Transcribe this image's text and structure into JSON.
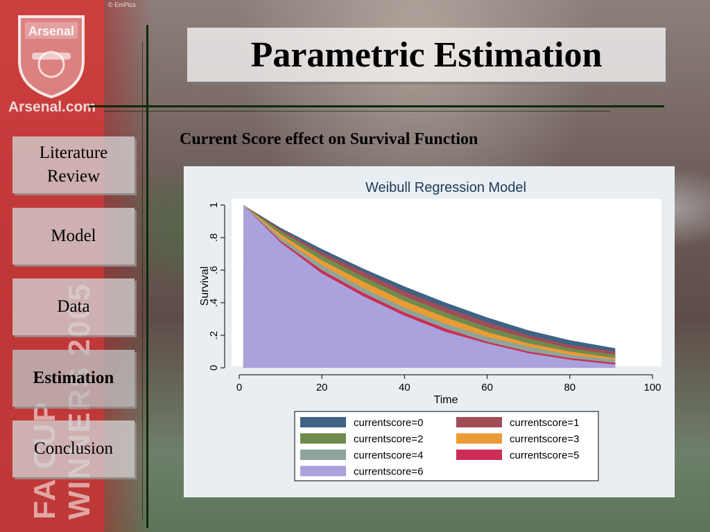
{
  "header": {
    "title": "Parametric Estimation",
    "subtitle": "Current Score effect on Survival Function",
    "photo_credit": "© EmPics"
  },
  "branding": {
    "crest_name": "Arsenal",
    "site": "Arsenal.com",
    "watermark": "FA CUP WINNERS 2005"
  },
  "nav": {
    "items": [
      {
        "label": "Literature Review",
        "active": false
      },
      {
        "label": "Model",
        "active": false
      },
      {
        "label": "Data",
        "active": false
      },
      {
        "label": "Estimation",
        "active": true
      },
      {
        "label": "Conclusion",
        "active": false
      }
    ]
  },
  "chart_data": {
    "type": "area",
    "title": "Weibull Regression Model",
    "xlabel": "Time",
    "ylabel": "Survival",
    "xlim": [
      0,
      100
    ],
    "ylim": [
      0,
      1
    ],
    "x_ticks": [
      "0",
      "20",
      "40",
      "60",
      "80",
      "100"
    ],
    "y_ticks": [
      "0",
      ".2",
      ".4",
      ".6",
      ".8",
      "1"
    ],
    "grid": false,
    "legend_position": "bottom",
    "x": [
      1,
      10,
      20,
      30,
      40,
      50,
      60,
      70,
      80,
      91
    ],
    "series": [
      {
        "name": "currentscore=0",
        "color": "#3f6384",
        "values": [
          1.0,
          0.86,
          0.73,
          0.61,
          0.5,
          0.4,
          0.31,
          0.23,
          0.17,
          0.12
        ]
      },
      {
        "name": "currentscore=1",
        "color": "#a24c57",
        "values": [
          1.0,
          0.85,
          0.71,
          0.59,
          0.47,
          0.37,
          0.28,
          0.2,
          0.14,
          0.1
        ]
      },
      {
        "name": "currentscore=2",
        "color": "#6f8c4e",
        "values": [
          1.0,
          0.84,
          0.69,
          0.56,
          0.44,
          0.34,
          0.25,
          0.18,
          0.12,
          0.08
        ]
      },
      {
        "name": "currentscore=3",
        "color": "#eb9b33",
        "values": [
          1.0,
          0.82,
          0.66,
          0.53,
          0.41,
          0.31,
          0.22,
          0.15,
          0.1,
          0.06
        ]
      },
      {
        "name": "currentscore=4",
        "color": "#8ea49a",
        "values": [
          1.0,
          0.8,
          0.63,
          0.49,
          0.37,
          0.27,
          0.19,
          0.13,
          0.08,
          0.05
        ]
      },
      {
        "name": "currentscore=5",
        "color": "#cd2c56",
        "values": [
          1.0,
          0.78,
          0.6,
          0.46,
          0.34,
          0.24,
          0.16,
          0.1,
          0.06,
          0.03
        ]
      },
      {
        "name": "currentscore=6",
        "color": "#a9a2dc",
        "values": [
          1.0,
          0.77,
          0.58,
          0.44,
          0.32,
          0.22,
          0.15,
          0.09,
          0.05,
          0.02
        ]
      }
    ]
  }
}
